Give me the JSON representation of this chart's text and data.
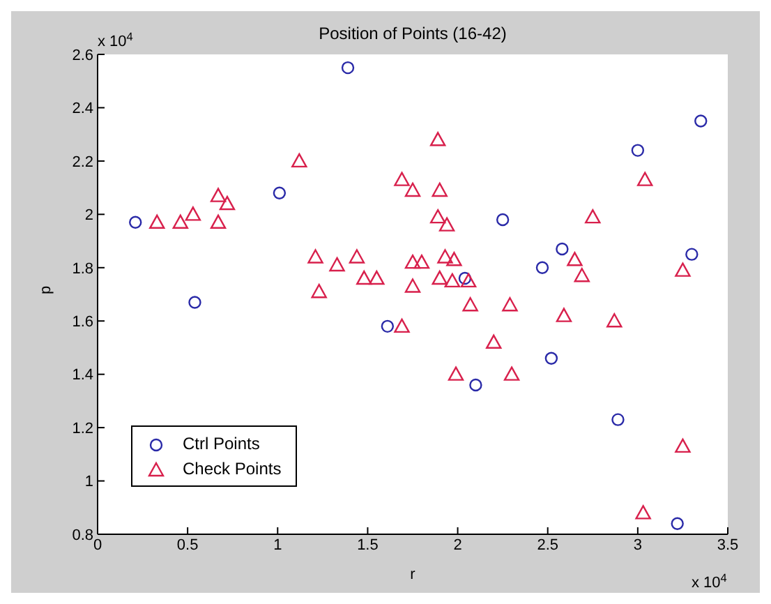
{
  "chart_data": {
    "type": "scatter",
    "title": "Position of Points (16-42)",
    "xlabel": "r",
    "ylabel": "p",
    "annotations": [
      "x 10$^{4}$",
      "x 10$^{4}$"
    ],
    "xlim": [
      0,
      3.5
    ],
    "ylim": [
      0.8,
      2.6
    ],
    "xticks": [
      0,
      0.5,
      1,
      1.5,
      2,
      2.5,
      3,
      3.5
    ],
    "yticks": [
      0.8,
      1,
      1.2,
      1.4,
      1.6,
      1.8,
      2,
      2.2,
      2.4,
      2.6
    ],
    "legend": "bottom left",
    "series": [
      {
        "name": "Ctrl Points",
        "color": "#2a2aa8",
        "marker": "circle",
        "x": [
          0.21,
          1.39,
          1.01,
          2.25,
          3.0,
          3.35,
          3.3,
          2.58,
          2.47,
          2.04,
          0.54,
          1.61,
          2.52,
          2.1,
          2.89,
          3.22
        ],
        "values": [
          1.97,
          2.55,
          2.08,
          1.98,
          2.24,
          2.35,
          1.85,
          1.87,
          1.8,
          1.76,
          1.67,
          1.58,
          1.46,
          1.36,
          1.23,
          0.84
        ]
      },
      {
        "name": "Check Points",
        "color": "#d8204c",
        "marker": "triangle",
        "x": [
          0.33,
          0.46,
          0.53,
          0.67,
          0.72,
          0.67,
          1.12,
          1.21,
          1.33,
          1.44,
          1.48,
          1.55,
          1.75,
          1.75,
          1.23,
          1.69,
          1.75,
          1.89,
          1.9,
          1.89,
          1.94,
          2.75,
          3.04,
          2.65,
          2.69,
          3.25,
          1.8,
          1.93,
          1.98,
          1.9,
          1.97,
          2.06,
          1.69,
          2.07,
          2.29,
          2.59,
          2.87,
          2.2,
          1.99,
          2.3,
          3.25,
          3.03
        ],
        "values": [
          1.97,
          1.97,
          2.0,
          2.07,
          2.04,
          1.97,
          2.2,
          1.84,
          1.81,
          1.84,
          1.76,
          1.76,
          1.82,
          1.73,
          1.71,
          2.13,
          2.09,
          2.28,
          2.09,
          1.99,
          1.96,
          1.99,
          2.13,
          1.83,
          1.77,
          1.79,
          1.82,
          1.84,
          1.83,
          1.76,
          1.75,
          1.75,
          1.58,
          1.66,
          1.66,
          1.62,
          1.6,
          1.52,
          1.4,
          1.4,
          1.13,
          0.88
        ]
      }
    ]
  }
}
